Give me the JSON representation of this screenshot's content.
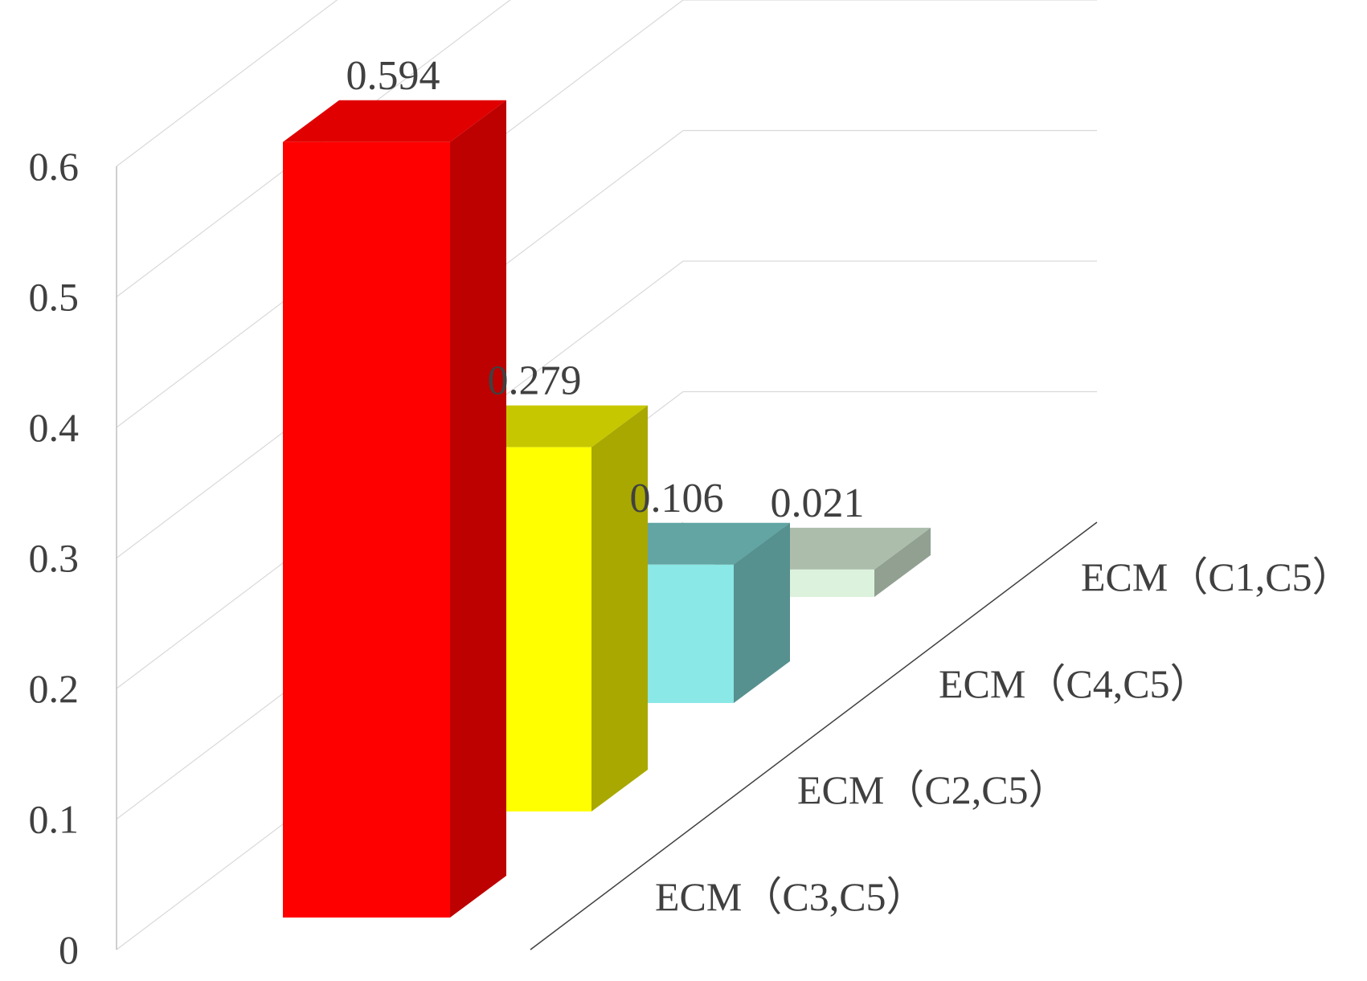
{
  "chart_data": {
    "type": "bar",
    "projection": "3d",
    "categories": [
      "ECM（C3,C5）",
      "ECM（C2,C5）",
      "ECM（C4,C5）",
      "ECM（C1,C5）"
    ],
    "values": [
      0.594,
      0.279,
      0.106,
      0.021
    ],
    "data_labels": [
      "0.594",
      "0.279",
      "0.106",
      "0.021"
    ],
    "colors": [
      "#ff0000",
      "#ffff00",
      "#8ae8e6",
      "#dcf2dc"
    ],
    "y_ticks": [
      "0",
      "0.1",
      "0.2",
      "0.3",
      "0.4",
      "0.5",
      "0.6"
    ],
    "ylim": [
      0,
      0.6
    ],
    "grid": true,
    "legend": "none",
    "title": "",
    "xlabel": "",
    "ylabel": ""
  }
}
